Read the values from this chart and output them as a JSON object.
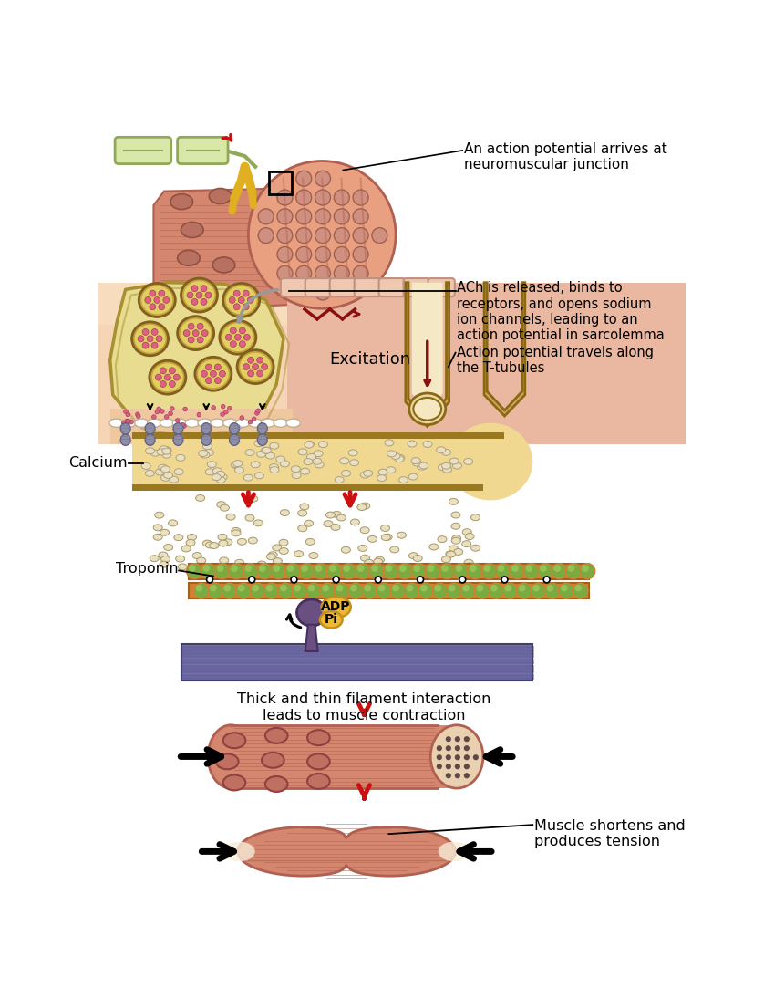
{
  "bg_color": "#ffffff",
  "annotations": {
    "action_potential": "An action potential arrives at\nneuromuscular junction",
    "ach_released": "ACh is released, binds to\nreceptors, and opens sodium\nion channels, leading to an\naction potential in sarcolemma",
    "excitation": "Excitation",
    "t_tubules": "Action potential travels along\nthe T-tubules",
    "calcium": "Calcium",
    "troponin": "Troponin",
    "filament": "Thick and thin filament interaction\nleads to muscle contraction",
    "muscle_shortens": "Muscle shortens and\nproduces tension",
    "adp": "ADP",
    "pi": "Pi"
  },
  "colors": {
    "muscle_pink": "#D4876E",
    "muscle_mid": "#C87A62",
    "muscle_light": "#E8A080",
    "muscle_dark": "#B06050",
    "muscle_body": "#D08070",
    "nerve_green": "#C8D898",
    "nerve_dark": "#90A858",
    "nerve_fill": "#D8E8A8",
    "synapse_yellow": "#D8C860",
    "synapse_light": "#E8DC90",
    "synapse_dark": "#A89030",
    "vesicle_ring": "#C8A040",
    "vesicle_inner": "#E0D060",
    "vesicle_dot": "#E06080",
    "membrane_peach": "#F0C8A0",
    "membrane_bg": "#EABCAA",
    "sarco_pink": "#E8B0A0",
    "ttube_tan": "#D4A860",
    "ttube_dark": "#8B6914",
    "ttube_light": "#F0E0B0",
    "calcium_bg": "#F0D890",
    "calcium_border": "#A09050",
    "calcium_dot": "#D8D0A0",
    "calcium_dot_edge": "#A89868",
    "actin_green": "#7AAA40",
    "actin_light": "#A0CC60",
    "actin_orange": "#D48030",
    "myosin_purple": "#6A5080",
    "adp_yellow": "#F0B830",
    "adp_edge": "#C09020",
    "thick_purple": "#7870A0",
    "thick_stripe": "#6060A0",
    "receptor_purple": "#9090B0",
    "red_arrow": "#CC1010",
    "black": "#000000",
    "white": "#ffffff",
    "gray_arrow": "#AAAAAA",
    "cross_section_bg": "#E8D0B0",
    "cross_section_dots": "#604848"
  }
}
